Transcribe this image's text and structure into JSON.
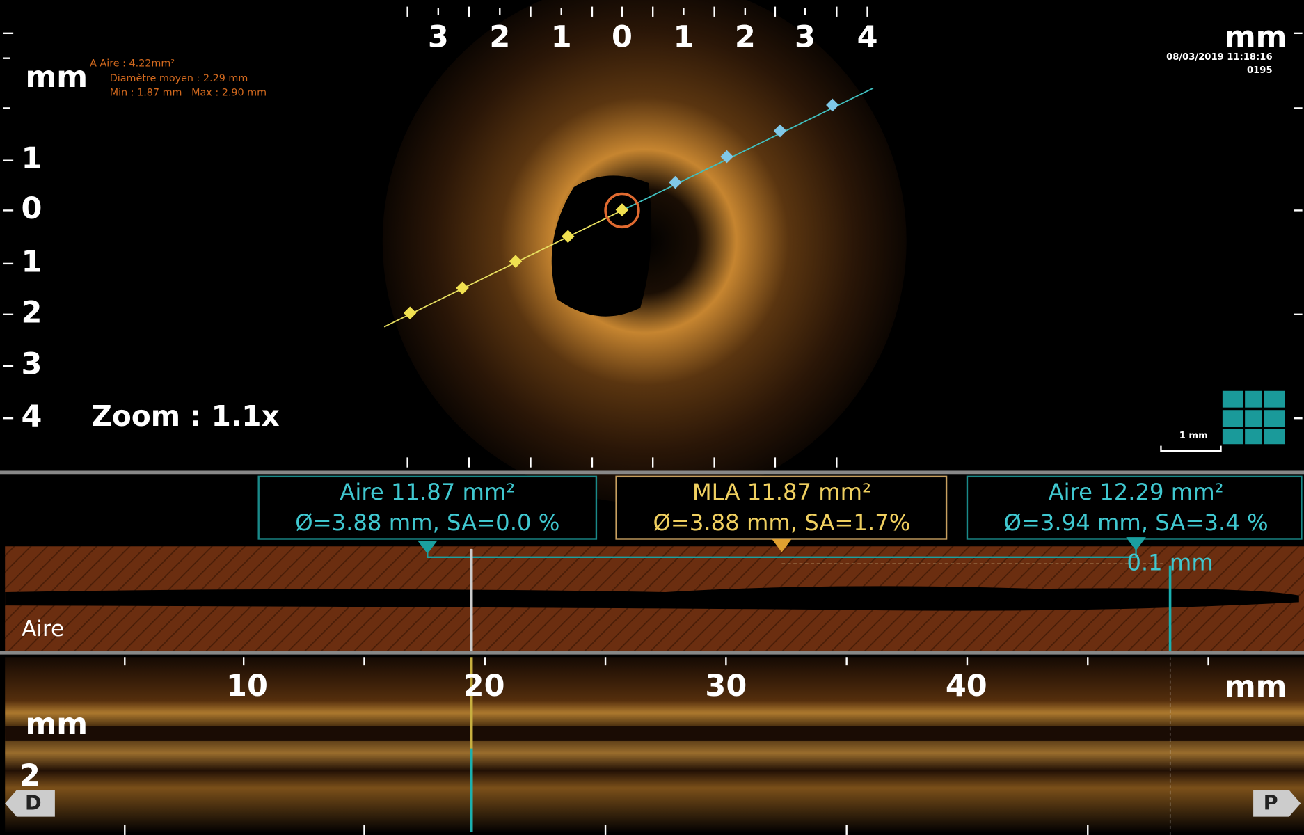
{
  "top_view": {
    "x_labels": [
      "3",
      "2",
      "1",
      "0",
      "1",
      "2",
      "3",
      "4"
    ],
    "unit_right": "mm",
    "unit_left": "mm",
    "y_labels": [
      "1",
      "0",
      "1",
      "2",
      "3",
      "4"
    ],
    "measurement": {
      "area": "A Aire : 4.22mm²",
      "mean_diameter": "Diamètre moyen : 2.29 mm",
      "min_max": "Min : 1.87 mm   Max : 2.90 mm"
    },
    "timestamp": "08/03/2019 11:18:16",
    "frame": "0195",
    "zoom": "Zoom : 1.1x",
    "scale_bar": "1 mm"
  },
  "area_panel": {
    "boxes": [
      {
        "line1": "Aire 11.87 mm²",
        "line2": "Ø=3.88 mm, SA=0.0 %"
      },
      {
        "line1": "MLA 11.87 mm²",
        "line2": "Ø=3.88 mm, SA=1.7%"
      },
      {
        "line1": "Aire 12.29 mm²",
        "line2": "Ø=3.94 mm, SA=3.4 %"
      }
    ],
    "distance": "0.1 mm",
    "label": "Aire"
  },
  "long_view": {
    "x_labels": [
      "10",
      "20",
      "30",
      "40"
    ],
    "unit_right": "mm",
    "unit_left": "mm",
    "y_label": "2",
    "left_button": "D",
    "right_button": "P"
  }
}
